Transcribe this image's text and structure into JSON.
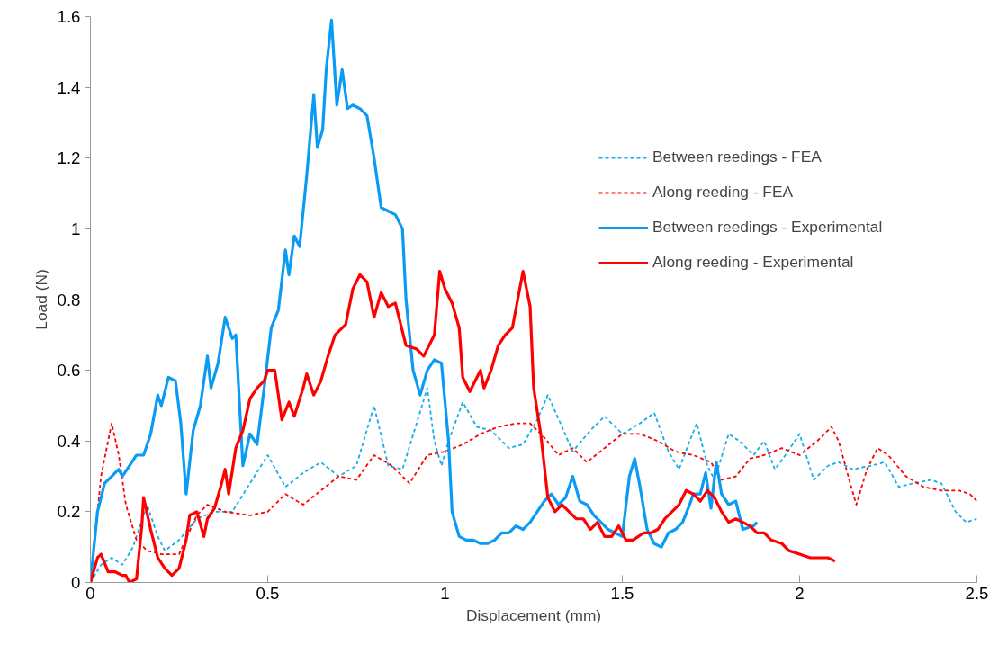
{
  "chart_data": {
    "type": "line",
    "xlabel": "Displacement (mm)",
    "ylabel": "Load (N)",
    "xlim": [
      0,
      2.5
    ],
    "ylim": [
      0,
      1.6
    ],
    "xticks": [
      0,
      0.5,
      1,
      1.5,
      2,
      2.5
    ],
    "yticks": [
      0,
      0.2,
      0.4,
      0.6,
      0.8,
      1,
      1.2,
      1.4,
      1.6
    ],
    "grid": false,
    "legend": "top right",
    "marker": "none",
    "series": [
      {
        "name": "Between reedings - FEA",
        "color": "#16aee6",
        "line_style": "dashed",
        "x": [
          0,
          0.03,
          0.06,
          0.09,
          0.12,
          0.16,
          0.19,
          0.21,
          0.25,
          0.3,
          0.35,
          0.4,
          0.45,
          0.5,
          0.55,
          0.6,
          0.65,
          0.7,
          0.75,
          0.8,
          0.84,
          0.88,
          0.92,
          0.95,
          0.97,
          0.99,
          1.01,
          1.05,
          1.09,
          1.13,
          1.18,
          1.22,
          1.26,
          1.29,
          1.33,
          1.36,
          1.41,
          1.45,
          1.5,
          1.55,
          1.59,
          1.63,
          1.66,
          1.69,
          1.71,
          1.74,
          1.76,
          1.8,
          1.83,
          1.87,
          1.9,
          1.93,
          1.96,
          2.0,
          2.04,
          2.08,
          2.11,
          2.15,
          2.2,
          2.24,
          2.28,
          2.32,
          2.37,
          2.4,
          2.44,
          2.47,
          2.5
        ],
        "values": [
          0,
          0.05,
          0.07,
          0.05,
          0.1,
          0.22,
          0.13,
          0.09,
          0.12,
          0.18,
          0.2,
          0.2,
          0.28,
          0.36,
          0.27,
          0.31,
          0.34,
          0.3,
          0.33,
          0.5,
          0.33,
          0.32,
          0.45,
          0.55,
          0.4,
          0.33,
          0.4,
          0.51,
          0.44,
          0.43,
          0.38,
          0.39,
          0.46,
          0.53,
          0.44,
          0.37,
          0.43,
          0.47,
          0.42,
          0.45,
          0.48,
          0.37,
          0.32,
          0.4,
          0.45,
          0.33,
          0.29,
          0.42,
          0.4,
          0.36,
          0.4,
          0.32,
          0.36,
          0.42,
          0.29,
          0.33,
          0.34,
          0.32,
          0.33,
          0.34,
          0.27,
          0.28,
          0.29,
          0.28,
          0.2,
          0.17,
          0.18
        ]
      },
      {
        "name": "Along reeding - FEA",
        "color": "#ff0000",
        "line_style": "dashed",
        "x": [
          0,
          0.03,
          0.06,
          0.08,
          0.1,
          0.13,
          0.16,
          0.2,
          0.25,
          0.3,
          0.33,
          0.38,
          0.45,
          0.5,
          0.55,
          0.6,
          0.65,
          0.7,
          0.75,
          0.8,
          0.85,
          0.9,
          0.95,
          1.0,
          1.05,
          1.1,
          1.15,
          1.2,
          1.24,
          1.28,
          1.32,
          1.36,
          1.4,
          1.45,
          1.5,
          1.55,
          1.6,
          1.65,
          1.7,
          1.75,
          1.78,
          1.82,
          1.86,
          1.9,
          1.95,
          2.0,
          2.05,
          2.09,
          2.11,
          2.14,
          2.16,
          2.19,
          2.22,
          2.25,
          2.3,
          2.35,
          2.4,
          2.45,
          2.48,
          2.5
        ],
        "values": [
          0,
          0.3,
          0.45,
          0.36,
          0.22,
          0.12,
          0.09,
          0.08,
          0.08,
          0.19,
          0.22,
          0.2,
          0.19,
          0.2,
          0.25,
          0.22,
          0.26,
          0.3,
          0.29,
          0.36,
          0.33,
          0.28,
          0.36,
          0.37,
          0.39,
          0.42,
          0.44,
          0.45,
          0.45,
          0.41,
          0.36,
          0.38,
          0.34,
          0.38,
          0.42,
          0.42,
          0.4,
          0.37,
          0.36,
          0.34,
          0.29,
          0.3,
          0.35,
          0.36,
          0.38,
          0.36,
          0.4,
          0.44,
          0.4,
          0.29,
          0.22,
          0.32,
          0.38,
          0.36,
          0.3,
          0.27,
          0.26,
          0.26,
          0.25,
          0.23
        ]
      },
      {
        "name": "Between reedings - Experimental",
        "color": "#0a9cf5",
        "line_style": "solid",
        "x": [
          0,
          0.02,
          0.04,
          0.06,
          0.08,
          0.09,
          0.11,
          0.13,
          0.15,
          0.17,
          0.19,
          0.2,
          0.22,
          0.24,
          0.255,
          0.27,
          0.29,
          0.31,
          0.33,
          0.34,
          0.36,
          0.38,
          0.4,
          0.41,
          0.43,
          0.45,
          0.47,
          0.49,
          0.51,
          0.53,
          0.55,
          0.56,
          0.575,
          0.59,
          0.61,
          0.63,
          0.64,
          0.655,
          0.665,
          0.68,
          0.695,
          0.71,
          0.725,
          0.74,
          0.76,
          0.78,
          0.8,
          0.82,
          0.84,
          0.86,
          0.88,
          0.89,
          0.91,
          0.93,
          0.95,
          0.97,
          0.99,
          1.01,
          1.02,
          1.04,
          1.06,
          1.08,
          1.1,
          1.12,
          1.14,
          1.16,
          1.18,
          1.2,
          1.22,
          1.24,
          1.26,
          1.28,
          1.3,
          1.32,
          1.34,
          1.36,
          1.38,
          1.4,
          1.42,
          1.44,
          1.46,
          1.48,
          1.5,
          1.52,
          1.535,
          1.55,
          1.57,
          1.59,
          1.61,
          1.63,
          1.65,
          1.67,
          1.69,
          1.7,
          1.72,
          1.735,
          1.75,
          1.765,
          1.78,
          1.8,
          1.82,
          1.84,
          1.87,
          1.88
        ],
        "values": [
          0,
          0.2,
          0.28,
          0.3,
          0.32,
          0.3,
          0.33,
          0.36,
          0.36,
          0.42,
          0.53,
          0.5,
          0.58,
          0.57,
          0.45,
          0.25,
          0.43,
          0.5,
          0.64,
          0.55,
          0.62,
          0.75,
          0.69,
          0.7,
          0.33,
          0.42,
          0.39,
          0.55,
          0.72,
          0.77,
          0.94,
          0.87,
          0.98,
          0.95,
          1.15,
          1.38,
          1.23,
          1.28,
          1.45,
          1.59,
          1.35,
          1.45,
          1.34,
          1.35,
          1.34,
          1.32,
          1.2,
          1.06,
          1.05,
          1.04,
          1.0,
          0.8,
          0.6,
          0.53,
          0.6,
          0.63,
          0.62,
          0.4,
          0.2,
          0.13,
          0.12,
          0.12,
          0.11,
          0.11,
          0.12,
          0.14,
          0.14,
          0.16,
          0.15,
          0.17,
          0.2,
          0.23,
          0.25,
          0.22,
          0.24,
          0.3,
          0.23,
          0.22,
          0.19,
          0.17,
          0.15,
          0.14,
          0.13,
          0.3,
          0.35,
          0.27,
          0.15,
          0.11,
          0.1,
          0.14,
          0.15,
          0.17,
          0.22,
          0.25,
          0.25,
          0.31,
          0.21,
          0.34,
          0.25,
          0.22,
          0.23,
          0.15,
          0.16,
          0.17
        ]
      },
      {
        "name": "Along reeding - Experimental",
        "color": "#ff0000",
        "line_style": "solid",
        "x": [
          0,
          0.02,
          0.03,
          0.05,
          0.07,
          0.09,
          0.1,
          0.11,
          0.13,
          0.145,
          0.15,
          0.17,
          0.19,
          0.21,
          0.23,
          0.25,
          0.27,
          0.28,
          0.3,
          0.32,
          0.33,
          0.35,
          0.37,
          0.38,
          0.39,
          0.41,
          0.43,
          0.45,
          0.47,
          0.49,
          0.5,
          0.52,
          0.54,
          0.56,
          0.575,
          0.6,
          0.61,
          0.63,
          0.65,
          0.67,
          0.69,
          0.72,
          0.74,
          0.76,
          0.78,
          0.8,
          0.82,
          0.84,
          0.86,
          0.89,
          0.92,
          0.94,
          0.97,
          0.985,
          1.0,
          1.02,
          1.04,
          1.05,
          1.07,
          1.09,
          1.1,
          1.11,
          1.13,
          1.15,
          1.17,
          1.19,
          1.22,
          1.24,
          1.25,
          1.27,
          1.29,
          1.31,
          1.33,
          1.35,
          1.37,
          1.39,
          1.41,
          1.43,
          1.45,
          1.47,
          1.49,
          1.51,
          1.53,
          1.56,
          1.58,
          1.6,
          1.62,
          1.64,
          1.66,
          1.68,
          1.7,
          1.72,
          1.74,
          1.76,
          1.78,
          1.8,
          1.82,
          1.84,
          1.86,
          1.88,
          1.9,
          1.92,
          1.95,
          1.97,
          2.0,
          2.03,
          2.06,
          2.08,
          2.1
        ],
        "values": [
          0,
          0.07,
          0.08,
          0.03,
          0.03,
          0.02,
          0.02,
          0.0,
          0.01,
          0.16,
          0.24,
          0.15,
          0.07,
          0.04,
          0.02,
          0.04,
          0.12,
          0.19,
          0.2,
          0.13,
          0.18,
          0.21,
          0.28,
          0.32,
          0.25,
          0.38,
          0.43,
          0.52,
          0.55,
          0.57,
          0.6,
          0.6,
          0.46,
          0.51,
          0.47,
          0.55,
          0.59,
          0.53,
          0.57,
          0.64,
          0.7,
          0.73,
          0.83,
          0.87,
          0.85,
          0.75,
          0.82,
          0.78,
          0.79,
          0.67,
          0.66,
          0.64,
          0.7,
          0.88,
          0.83,
          0.79,
          0.72,
          0.58,
          0.54,
          0.58,
          0.6,
          0.55,
          0.6,
          0.67,
          0.7,
          0.72,
          0.88,
          0.78,
          0.55,
          0.42,
          0.24,
          0.2,
          0.22,
          0.2,
          0.18,
          0.18,
          0.15,
          0.17,
          0.13,
          0.13,
          0.16,
          0.12,
          0.12,
          0.14,
          0.14,
          0.15,
          0.18,
          0.2,
          0.22,
          0.26,
          0.25,
          0.23,
          0.26,
          0.24,
          0.2,
          0.17,
          0.18,
          0.17,
          0.16,
          0.14,
          0.14,
          0.12,
          0.11,
          0.09,
          0.08,
          0.07,
          0.07,
          0.07,
          0.06
        ]
      }
    ]
  }
}
